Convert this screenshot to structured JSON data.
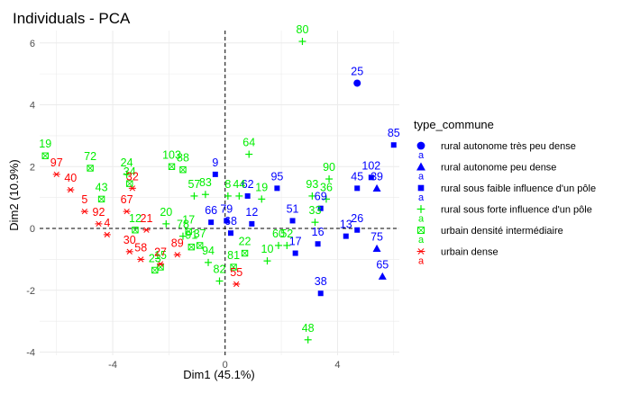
{
  "chart_data": {
    "type": "scatter",
    "title": "Individuals - PCA",
    "xlabel": "Dim1 (45.1%)",
    "ylabel": "Dim2 (10.9%)",
    "xlim": [
      -6.6,
      6.2
    ],
    "ylim": [
      -4.1,
      6.4
    ],
    "xticks": [
      -4,
      0,
      4
    ],
    "yticks": [
      -4,
      -2,
      0,
      2,
      4,
      6
    ],
    "grid": true,
    "reference_lines": {
      "x": 0,
      "y": 0,
      "style": "dashed"
    },
    "legend": {
      "title": "type_commune",
      "position": "right"
    },
    "series": [
      {
        "name": "rural autonome très peu dense",
        "color": "#0000ff",
        "marker": "circle",
        "points": [
          {
            "label": "25",
            "x": 4.7,
            "y": 4.7
          }
        ]
      },
      {
        "name": "rural autonome peu dense",
        "color": "#0000ff",
        "marker": "triangle",
        "points": [
          {
            "label": "39",
            "x": 5.4,
            "y": 1.3
          },
          {
            "label": "65",
            "x": 5.6,
            "y": -1.55
          },
          {
            "label": "75",
            "x": 5.4,
            "y": -0.65
          }
        ]
      },
      {
        "name": "rural sous faible influence d'un pôle",
        "color": "#0000ff",
        "marker": "square",
        "points": [
          {
            "label": "85",
            "x": 6.0,
            "y": 2.7
          },
          {
            "label": "102",
            "x": 5.2,
            "y": 1.65
          },
          {
            "label": "45",
            "x": 4.7,
            "y": 1.3
          },
          {
            "label": "26",
            "x": 4.7,
            "y": -0.05
          },
          {
            "label": "13",
            "x": 4.3,
            "y": -0.25
          },
          {
            "label": "69",
            "x": 3.4,
            "y": 0.65
          },
          {
            "label": "16",
            "x": 3.3,
            "y": -0.5
          },
          {
            "label": "95",
            "x": 1.85,
            "y": 1.3
          },
          {
            "label": "51",
            "x": 2.4,
            "y": 0.25
          },
          {
            "label": "17",
            "x": 2.5,
            "y": -0.8
          },
          {
            "label": "38",
            "x": 3.4,
            "y": -2.1
          },
          {
            "label": "9",
            "x": -0.35,
            "y": 1.75
          },
          {
            "label": "62",
            "x": 0.8,
            "y": 1.05
          },
          {
            "label": "12",
            "x": 0.95,
            "y": 0.15
          },
          {
            "label": "66",
            "x": -0.5,
            "y": 0.2
          },
          {
            "label": "79",
            "x": 0.05,
            "y": 0.25
          },
          {
            "label": "68",
            "x": 0.2,
            "y": -0.15
          }
        ]
      },
      {
        "name": "rural sous forte influence d'un pôle",
        "color": "#00ee00",
        "marker": "plus",
        "points": [
          {
            "label": "80",
            "x": 2.75,
            "y": 6.05
          },
          {
            "label": "48",
            "x": 2.95,
            "y": -3.6
          },
          {
            "label": "90",
            "x": 3.7,
            "y": 1.6
          },
          {
            "label": "93",
            "x": 3.1,
            "y": 1.05
          },
          {
            "label": "36",
            "x": 3.6,
            "y": 0.95
          },
          {
            "label": "33",
            "x": 3.2,
            "y": 0.2
          },
          {
            "label": "64",
            "x": 0.85,
            "y": 2.4
          },
          {
            "label": "44",
            "x": 0.5,
            "y": 1.05
          },
          {
            "label": "8",
            "x": 0.1,
            "y": 1.05
          },
          {
            "label": "57",
            "x": -1.1,
            "y": 1.05
          },
          {
            "label": "83",
            "x": -0.7,
            "y": 1.1
          },
          {
            "label": "19",
            "x": 1.3,
            "y": 0.95
          },
          {
            "label": "60",
            "x": 1.9,
            "y": -0.55
          },
          {
            "label": "52",
            "x": 2.2,
            "y": -0.55
          },
          {
            "label": "10",
            "x": 1.5,
            "y": -1.05
          },
          {
            "label": "94",
            "x": -0.6,
            "y": -1.1
          },
          {
            "label": "82",
            "x": -0.2,
            "y": -1.7
          },
          {
            "label": "20",
            "x": -2.1,
            "y": 0.15
          },
          {
            "label": "24",
            "x": -3.5,
            "y": 1.75
          },
          {
            "label": "78",
            "x": -1.5,
            "y": -0.25
          }
        ]
      },
      {
        "name": "urbain densité intermédiaire",
        "color": "#00ee00",
        "marker": "boxed-cross",
        "points": [
          {
            "label": "19",
            "x": -6.4,
            "y": 2.35
          },
          {
            "label": "72",
            "x": -4.8,
            "y": 1.95
          },
          {
            "label": "43",
            "x": -4.4,
            "y": 0.95
          },
          {
            "label": "34",
            "x": -3.4,
            "y": 1.45
          },
          {
            "label": "103",
            "x": -1.9,
            "y": 2.0
          },
          {
            "label": "88",
            "x": -1.5,
            "y": 1.9
          },
          {
            "label": "12",
            "x": -3.2,
            "y": -0.05
          },
          {
            "label": "17",
            "x": -1.3,
            "y": -0.1
          },
          {
            "label": "15",
            "x": -2.3,
            "y": -1.25
          },
          {
            "label": "23",
            "x": -2.5,
            "y": -1.35
          },
          {
            "label": "91",
            "x": -1.2,
            "y": -0.6
          },
          {
            "label": "37",
            "x": -0.9,
            "y": -0.55
          },
          {
            "label": "81",
            "x": 0.3,
            "y": -1.25
          },
          {
            "label": "22",
            "x": 0.7,
            "y": -0.8
          }
        ]
      },
      {
        "name": "urbain dense",
        "color": "#ff0000",
        "marker": "asterisk",
        "points": [
          {
            "label": "97",
            "x": -6.0,
            "y": 1.75
          },
          {
            "label": "40",
            "x": -5.5,
            "y": 1.25
          },
          {
            "label": "5",
            "x": -5.0,
            "y": 0.55
          },
          {
            "label": "92",
            "x": -4.5,
            "y": 0.15
          },
          {
            "label": "4",
            "x": -4.2,
            "y": -0.2
          },
          {
            "label": "67",
            "x": -3.5,
            "y": 0.55
          },
          {
            "label": "32",
            "x": -3.3,
            "y": 1.3
          },
          {
            "label": "30",
            "x": -3.4,
            "y": -0.75
          },
          {
            "label": "58",
            "x": -3.0,
            "y": -1.0
          },
          {
            "label": "27",
            "x": -2.3,
            "y": -1.15
          },
          {
            "label": "89",
            "x": -1.7,
            "y": -0.85
          },
          {
            "label": "21",
            "x": -2.8,
            "y": -0.05
          },
          {
            "label": "55",
            "x": 0.4,
            "y": -1.8
          }
        ]
      }
    ]
  }
}
